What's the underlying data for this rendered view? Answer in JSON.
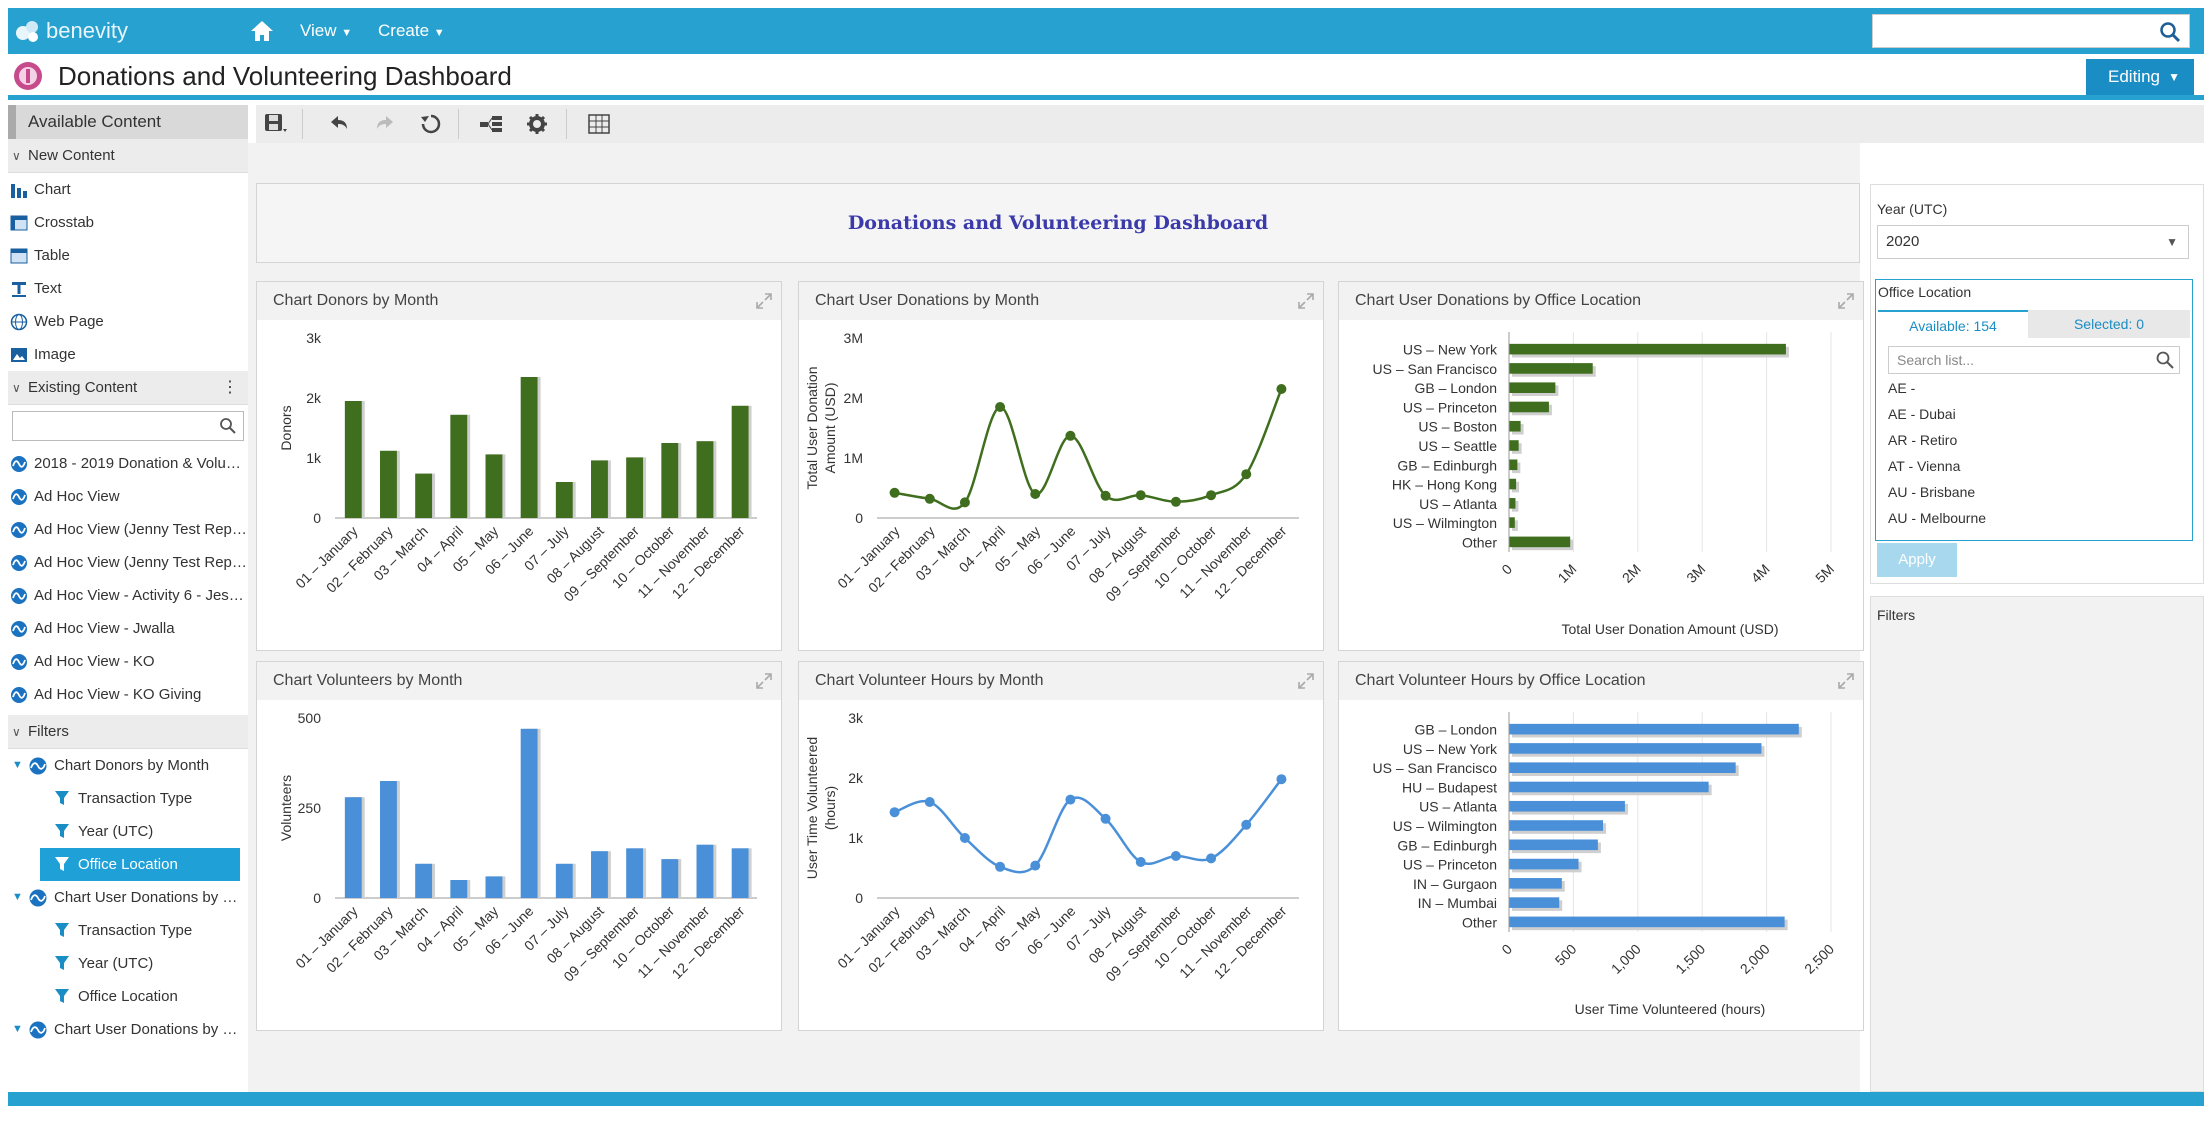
{
  "app": {
    "brand": "benevity",
    "nav": [
      "View",
      "Create"
    ]
  },
  "header": {
    "title": "Donations and Volunteering Dashboard",
    "mode": "Editing"
  },
  "sidebar": {
    "available_content": "Available Content",
    "new_content_label": "New Content",
    "new_content": [
      {
        "label": "Chart",
        "icon": "bar-chart-icon"
      },
      {
        "label": "Crosstab",
        "icon": "crosstab-icon"
      },
      {
        "label": "Table",
        "icon": "table-icon"
      },
      {
        "label": "Text",
        "icon": "text-icon"
      },
      {
        "label": "Web Page",
        "icon": "globe-icon"
      },
      {
        "label": "Image",
        "icon": "image-icon"
      }
    ],
    "existing_content_label": "Existing Content",
    "existing_content": [
      "2018 - 2019 Donation & Volu…",
      "Ad Hoc View",
      "Ad Hoc View (Jenny Test Rep…",
      "Ad Hoc View (Jenny Test Rep…",
      "Ad Hoc View - Activity 6 - Jes…",
      "Ad Hoc View - Jwalla",
      "Ad Hoc View - KO",
      "Ad Hoc View - KO Giving"
    ],
    "filters_label": "Filters",
    "filter_tree": [
      {
        "label": "Chart Donors by Month",
        "level": 1
      },
      {
        "label": "Transaction Type",
        "level": 2
      },
      {
        "label": "Year (UTC)",
        "level": 2
      },
      {
        "label": "Office Location",
        "level": 2,
        "selected": true
      },
      {
        "label": "Chart User Donations by …",
        "level": 1
      },
      {
        "label": "Transaction Type",
        "level": 2
      },
      {
        "label": "Year (UTC)",
        "level": 2
      },
      {
        "label": "Office Location",
        "level": 2
      },
      {
        "label": "Chart User Donations by …",
        "level": 1
      }
    ]
  },
  "dashboard": {
    "title": "Donations and Volunteering Dashboard",
    "panels": [
      {
        "title": "Chart Donors by Month"
      },
      {
        "title": "Chart User Donations by Month"
      },
      {
        "title": "Chart User Donations by Office Location"
      },
      {
        "title": "Chart Volunteers by Month"
      },
      {
        "title": "Chart Volunteer Hours by Month"
      },
      {
        "title": "Chart Volunteer Hours by Office Location"
      }
    ]
  },
  "filters_panel": {
    "year_label": "Year (UTC)",
    "year_value": "2020",
    "office_label": "Office Location",
    "tab_available": "Available: 154",
    "tab_selected": "Selected: 0",
    "search_placeholder": "Search list...",
    "locations": [
      "AE -",
      "AE - Dubai",
      "AR - Retiro",
      "AT - Vienna",
      "AU - Brisbane",
      "AU - Melbourne"
    ],
    "apply": "Apply",
    "filters_label": "Filters"
  },
  "colors": {
    "accent": "#27a1cf",
    "green": "#3f6e1e",
    "blue": "#4a90d9"
  },
  "chart_data": [
    {
      "type": "bar",
      "title": "Chart Donors by Month",
      "ylabel": "Donors",
      "categories": [
        "01 – January",
        "02 – February",
        "03 – March",
        "04 – April",
        "05 – May",
        "06 – June",
        "07 – July",
        "08 – August",
        "09 – September",
        "10 – October",
        "11 – November",
        "12 – December"
      ],
      "values": [
        1950,
        1120,
        740,
        1720,
        1060,
        2350,
        600,
        960,
        1010,
        1250,
        1280,
        1870
      ],
      "ylim": [
        0,
        3000
      ],
      "yticks": [
        {
          "v": 0,
          "t": "0"
        },
        {
          "v": 1000,
          "t": "1k"
        },
        {
          "v": 2000,
          "t": "2k"
        },
        {
          "v": 3000,
          "t": "3k"
        }
      ],
      "color": "#3f6e1e"
    },
    {
      "type": "line",
      "title": "Chart User Donations by Month",
      "ylabel": "Total User Donation Amount (USD)",
      "categories": [
        "01 – January",
        "02 – February",
        "03 – March",
        "04 – April",
        "05 – May",
        "06 – June",
        "07 – July",
        "08 – August",
        "09 – September",
        "10 – October",
        "11 – November",
        "12 – December"
      ],
      "values": [
        420000,
        320000,
        260000,
        1850000,
        400000,
        1370000,
        370000,
        380000,
        270000,
        380000,
        730000,
        2150000
      ],
      "ylim": [
        0,
        3000000
      ],
      "yticks": [
        {
          "v": 0,
          "t": "0"
        },
        {
          "v": 1000000,
          "t": "1M"
        },
        {
          "v": 2000000,
          "t": "2M"
        },
        {
          "v": 3000000,
          "t": "3M"
        }
      ],
      "color": "#3f6e1e"
    },
    {
      "type": "bar",
      "orientation": "horizontal",
      "title": "Chart User Donations by Office Location",
      "xlabel": "Total User Donation Amount (USD)",
      "categories": [
        "US – New York",
        "US – San Francisco",
        "GB – London",
        "US – Princeton",
        "US – Boston",
        "US – Seattle",
        "GB – Edinburgh",
        "HK – Hong Kong",
        "US – Atlanta",
        "US – Wilmington",
        "Other"
      ],
      "values": [
        4300000,
        1300000,
        720000,
        620000,
        180000,
        150000,
        130000,
        110000,
        100000,
        90000,
        950000
      ],
      "xlim": [
        0,
        5000000
      ],
      "xticks": [
        {
          "v": 0,
          "t": "0"
        },
        {
          "v": 1000000,
          "t": "1M"
        },
        {
          "v": 2000000,
          "t": "2M"
        },
        {
          "v": 3000000,
          "t": "3M"
        },
        {
          "v": 4000000,
          "t": "4M"
        },
        {
          "v": 5000000,
          "t": "5M"
        }
      ],
      "color": "#3f6e1e"
    },
    {
      "type": "bar",
      "title": "Chart Volunteers by Month",
      "ylabel": "Volunteers",
      "categories": [
        "01 – January",
        "02 – February",
        "03 – March",
        "04 – April",
        "05 – May",
        "06 – June",
        "07 – July",
        "08 – August",
        "09 – September",
        "10 – October",
        "11 – November",
        "12 – December"
      ],
      "values": [
        280,
        325,
        95,
        50,
        60,
        470,
        95,
        130,
        138,
        108,
        148,
        138
      ],
      "ylim": [
        0,
        500
      ],
      "yticks": [
        {
          "v": 0,
          "t": "0"
        },
        {
          "v": 250,
          "t": "250"
        },
        {
          "v": 500,
          "t": "500"
        }
      ],
      "color": "#4a90d9"
    },
    {
      "type": "line",
      "title": "Chart Volunteer Hours by Month",
      "ylabel": "User Time Volunteered (hours)",
      "categories": [
        "01 – January",
        "02 – February",
        "03 – March",
        "04 – April",
        "05 – May",
        "06 – June",
        "07 – July",
        "08 – August",
        "09 – September",
        "10 – October",
        "11 – November",
        "12 – December"
      ],
      "values": [
        1430,
        1600,
        1000,
        520,
        540,
        1640,
        1320,
        600,
        700,
        660,
        1220,
        1980
      ],
      "ylim": [
        0,
        3000
      ],
      "yticks": [
        {
          "v": 0,
          "t": "0"
        },
        {
          "v": 1000,
          "t": "1k"
        },
        {
          "v": 2000,
          "t": "2k"
        },
        {
          "v": 3000,
          "t": "3k"
        }
      ],
      "color": "#4a90d9"
    },
    {
      "type": "bar",
      "orientation": "horizontal",
      "title": "Chart Volunteer Hours by Office Location",
      "xlabel": "User Time Volunteered (hours)",
      "categories": [
        "GB – London",
        "US – New York",
        "US – San Francisco",
        "HU – Budapest",
        "US – Atlanta",
        "US – Wilmington",
        "GB – Edinburgh",
        "US – Princeton",
        "IN – Gurgaon",
        "IN – Mumbai",
        "Other"
      ],
      "values": [
        2250,
        1960,
        1760,
        1550,
        900,
        730,
        690,
        540,
        410,
        390,
        2140
      ],
      "xlim": [
        0,
        2500
      ],
      "xticks": [
        {
          "v": 0,
          "t": "0"
        },
        {
          "v": 500,
          "t": "500"
        },
        {
          "v": 1000,
          "t": "1,000"
        },
        {
          "v": 1500,
          "t": "1,500"
        },
        {
          "v": 2000,
          "t": "2,000"
        },
        {
          "v": 2500,
          "t": "2,500"
        }
      ],
      "color": "#4a90d9"
    }
  ]
}
